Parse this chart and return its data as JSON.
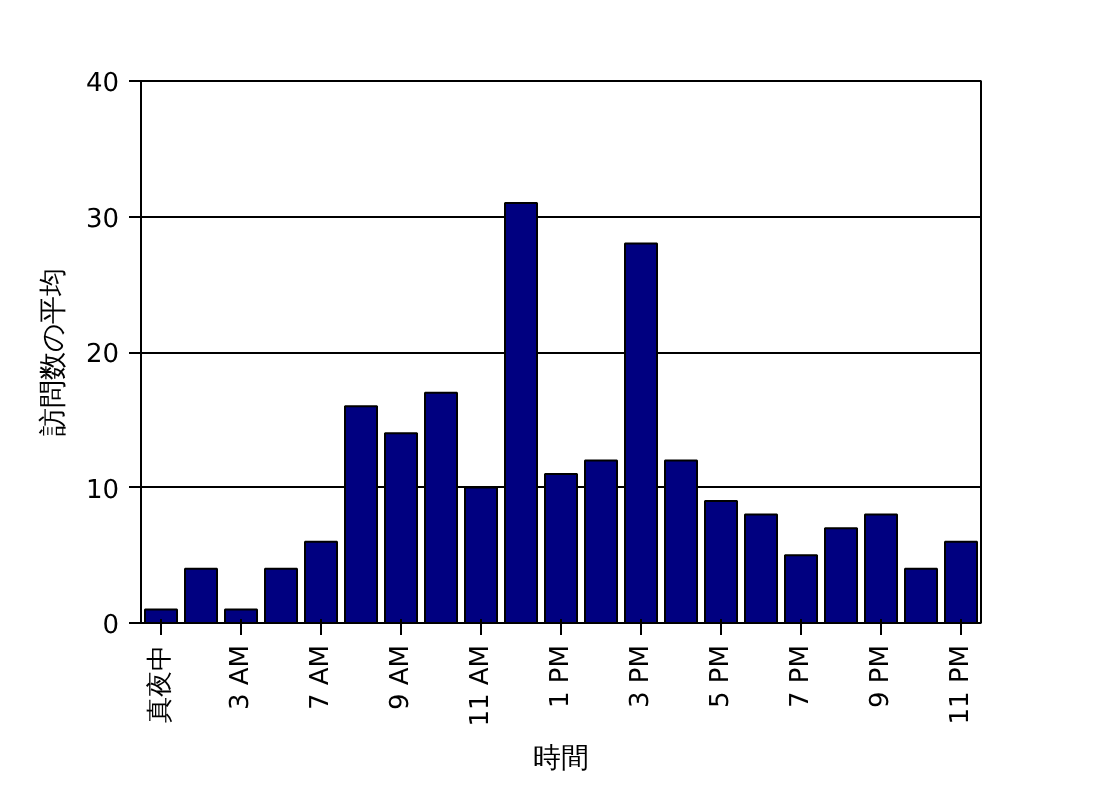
{
  "chart_data": {
    "type": "bar",
    "xlabel": "時間",
    "ylabel": "訪問数の平均",
    "categories": [
      "真夜中",
      null,
      "3 AM",
      null,
      "7 AM",
      null,
      "9 AM",
      null,
      "11 AM",
      null,
      "1 PM",
      null,
      "3 PM",
      null,
      "5 PM",
      null,
      "7 PM",
      null,
      "9 PM",
      null,
      "11 PM"
    ],
    "values": [
      1,
      4,
      1,
      4,
      6,
      16,
      14,
      17,
      10,
      31,
      11,
      12,
      28,
      12,
      9,
      8,
      5,
      7,
      8,
      4,
      6
    ],
    "color": "#000080",
    "ylim": [
      0,
      40
    ],
    "yticks": [
      0,
      10,
      20,
      30,
      40
    ],
    "grid": "y"
  }
}
